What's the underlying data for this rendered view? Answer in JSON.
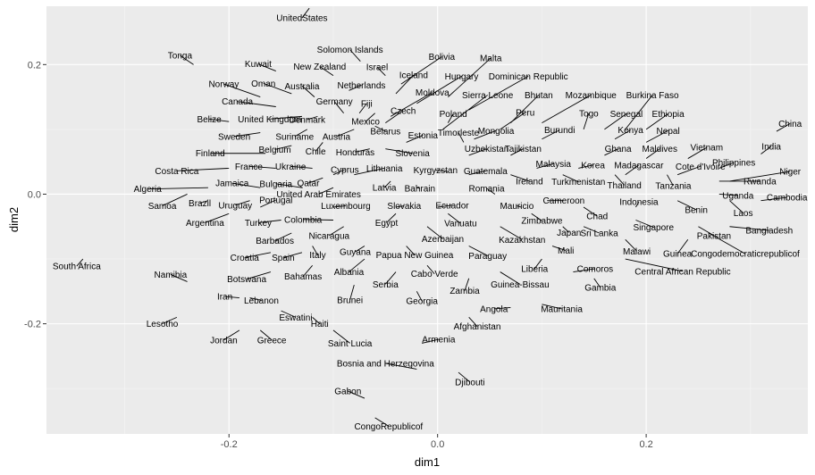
{
  "chart_data": {
    "type": "scatter",
    "xlabel": "dim1",
    "ylabel": "dim2",
    "xlim": [
      -0.375,
      0.355
    ],
    "ylim": [
      -0.37,
      0.29
    ],
    "x_ticks": [
      -0.2,
      0.0,
      0.2
    ],
    "x_tick_labels": [
      "-0.2",
      "0.0",
      "0.2"
    ],
    "y_ticks": [
      -0.2,
      0.0,
      0.2
    ],
    "y_tick_labels": [
      "-0.2",
      "0.0",
      "0.2"
    ],
    "grid": true,
    "labels": [
      {
        "text": "UnitedStates",
        "x": -0.13,
        "y": 0.272,
        "px": -0.123,
        "py": 0.287
      },
      {
        "text": "Tonga",
        "x": -0.247,
        "y": 0.214,
        "px": -0.234,
        "py": 0.2
      },
      {
        "text": "Solomon Islands",
        "x": -0.084,
        "y": 0.223,
        "px": -0.074,
        "py": 0.205
      },
      {
        "text": "Kuwait",
        "x": -0.172,
        "y": 0.201,
        "px": -0.155,
        "py": 0.19
      },
      {
        "text": "New Zealand",
        "x": -0.113,
        "y": 0.197,
        "px": -0.1,
        "py": 0.183
      },
      {
        "text": "Israel",
        "x": -0.058,
        "y": 0.196,
        "px": -0.05,
        "py": 0.183
      },
      {
        "text": "Bolivia",
        "x": 0.004,
        "y": 0.212,
        "px": -0.035,
        "py": 0.17
      },
      {
        "text": "Malta",
        "x": 0.051,
        "y": 0.21,
        "px": 0.01,
        "py": 0.15
      },
      {
        "text": "Norway",
        "x": -0.205,
        "y": 0.17,
        "px": -0.17,
        "py": 0.15
      },
      {
        "text": "Oman",
        "x": -0.167,
        "y": 0.171,
        "px": -0.14,
        "py": 0.155
      },
      {
        "text": "Australia",
        "x": -0.13,
        "y": 0.167,
        "px": -0.118,
        "py": 0.15
      },
      {
        "text": "Iceland",
        "x": -0.023,
        "y": 0.184,
        "px": -0.04,
        "py": 0.155
      },
      {
        "text": "Netherlands",
        "x": -0.073,
        "y": 0.168,
        "px": -0.085,
        "py": 0.16
      },
      {
        "text": "Hungary",
        "x": 0.023,
        "y": 0.182,
        "px": -0.02,
        "py": 0.14
      },
      {
        "text": "Dominican Republic",
        "x": 0.087,
        "y": 0.182,
        "px": 0.03,
        "py": 0.13
      },
      {
        "text": "Canada",
        "x": -0.192,
        "y": 0.143,
        "px": -0.155,
        "py": 0.135
      },
      {
        "text": "Germany",
        "x": -0.099,
        "y": 0.143,
        "px": -0.09,
        "py": 0.125
      },
      {
        "text": "Fiji",
        "x": -0.068,
        "y": 0.14,
        "px": -0.075,
        "py": 0.125
      },
      {
        "text": "Moldova",
        "x": -0.005,
        "y": 0.157,
        "px": -0.045,
        "py": 0.12
      },
      {
        "text": "Sierra Leone",
        "x": 0.048,
        "y": 0.153,
        "px": 0.005,
        "py": 0.1
      },
      {
        "text": "Bhutan",
        "x": 0.097,
        "y": 0.153,
        "px": 0.07,
        "py": 0.11
      },
      {
        "text": "Mozambique",
        "x": 0.147,
        "y": 0.153,
        "px": 0.1,
        "py": 0.11
      },
      {
        "text": "Burkina Faso",
        "x": 0.206,
        "y": 0.153,
        "px": 0.18,
        "py": 0.1
      },
      {
        "text": "Czech",
        "x": -0.033,
        "y": 0.129,
        "px": -0.05,
        "py": 0.11
      },
      {
        "text": "Peru",
        "x": 0.084,
        "y": 0.126,
        "px": 0.06,
        "py": 0.1
      },
      {
        "text": "Ethiopia",
        "x": 0.221,
        "y": 0.124,
        "px": 0.2,
        "py": 0.1
      },
      {
        "text": "Senegal",
        "x": 0.181,
        "y": 0.124,
        "px": 0.16,
        "py": 0.1
      },
      {
        "text": "Togo",
        "x": 0.145,
        "y": 0.125,
        "px": 0.14,
        "py": 0.1
      },
      {
        "text": "Poland",
        "x": 0.015,
        "y": 0.124,
        "px": 0.01,
        "py": 0.11
      },
      {
        "text": "Belize",
        "x": -0.219,
        "y": 0.116,
        "px": -0.2,
        "py": 0.112
      },
      {
        "text": "United Kingdom",
        "x": -0.161,
        "y": 0.116,
        "px": -0.13,
        "py": 0.12
      },
      {
        "text": "Denmark",
        "x": -0.125,
        "y": 0.115,
        "px": -0.115,
        "py": 0.12
      },
      {
        "text": "Mexico",
        "x": -0.069,
        "y": 0.112,
        "px": -0.06,
        "py": 0.125
      },
      {
        "text": "Burundi",
        "x": 0.117,
        "y": 0.099,
        "px": 0.1,
        "py": 0.085
      },
      {
        "text": "Mongolia",
        "x": 0.056,
        "y": 0.098,
        "px": 0.035,
        "py": 0.085
      },
      {
        "text": "Timorleste",
        "x": 0.02,
        "y": 0.095,
        "px": 0.025,
        "py": 0.08
      },
      {
        "text": "Kenya",
        "x": 0.185,
        "y": 0.099,
        "px": 0.17,
        "py": 0.085
      },
      {
        "text": "Nepal",
        "x": 0.221,
        "y": 0.098,
        "px": 0.2,
        "py": 0.08
      },
      {
        "text": "Belarus",
        "x": -0.05,
        "y": 0.097,
        "px": -0.06,
        "py": 0.105
      },
      {
        "text": "Estonia",
        "x": -0.014,
        "y": 0.091,
        "px": -0.03,
        "py": 0.08
      },
      {
        "text": "Sweden",
        "x": -0.195,
        "y": 0.089,
        "px": -0.17,
        "py": 0.095
      },
      {
        "text": "Suriname",
        "x": -0.137,
        "y": 0.089,
        "px": -0.125,
        "py": 0.1
      },
      {
        "text": "Austria",
        "x": -0.097,
        "y": 0.089,
        "px": -0.08,
        "py": 0.1
      },
      {
        "text": "China",
        "x": 0.338,
        "y": 0.109,
        "px": 0.325,
        "py": 0.097
      },
      {
        "text": "Uzbekistan",
        "x": 0.047,
        "y": 0.07,
        "px": 0.03,
        "py": 0.06
      },
      {
        "text": "Tajikistan",
        "x": 0.082,
        "y": 0.07,
        "px": 0.07,
        "py": 0.06
      },
      {
        "text": "Ghana",
        "x": 0.173,
        "y": 0.07,
        "px": 0.16,
        "py": 0.06
      },
      {
        "text": "Maldives",
        "x": 0.213,
        "y": 0.07,
        "px": 0.2,
        "py": 0.055
      },
      {
        "text": "Vietnam",
        "x": 0.258,
        "y": 0.072,
        "px": 0.24,
        "py": 0.055
      },
      {
        "text": "India",
        "x": 0.32,
        "y": 0.074,
        "px": 0.31,
        "py": 0.062
      },
      {
        "text": "Finland",
        "x": -0.218,
        "y": 0.063,
        "px": -0.165,
        "py": 0.063
      },
      {
        "text": "Belgium",
        "x": -0.156,
        "y": 0.069,
        "px": -0.14,
        "py": 0.075
      },
      {
        "text": "Chile",
        "x": -0.117,
        "y": 0.066,
        "px": -0.11,
        "py": 0.08
      },
      {
        "text": "Honduras",
        "x": -0.079,
        "y": 0.065,
        "px": -0.065,
        "py": 0.07
      },
      {
        "text": "Slovenia",
        "x": -0.024,
        "y": 0.063,
        "px": -0.05,
        "py": 0.07
      },
      {
        "text": "Philippines",
        "x": 0.284,
        "y": 0.049,
        "px": 0.27,
        "py": 0.04
      },
      {
        "text": "Malaysia",
        "x": 0.111,
        "y": 0.047,
        "px": 0.095,
        "py": 0.04
      },
      {
        "text": "Korea",
        "x": 0.149,
        "y": 0.045,
        "px": 0.135,
        "py": 0.04
      },
      {
        "text": "Madagascar",
        "x": 0.193,
        "y": 0.045,
        "px": 0.18,
        "py": 0.03
      },
      {
        "text": "Cote d'Ivoire",
        "x": 0.252,
        "y": 0.043,
        "px": 0.23,
        "py": 0.03
      },
      {
        "text": "Niger",
        "x": 0.338,
        "y": 0.035,
        "px": 0.28,
        "py": 0.02
      },
      {
        "text": "Costa Rica",
        "x": -0.25,
        "y": 0.036,
        "px": -0.2,
        "py": 0.04
      },
      {
        "text": "France",
        "x": -0.181,
        "y": 0.043,
        "px": -0.155,
        "py": 0.04
      },
      {
        "text": "Ukraine",
        "x": -0.141,
        "y": 0.043,
        "px": -0.12,
        "py": 0.04
      },
      {
        "text": "Cyprus",
        "x": -0.089,
        "y": 0.038,
        "px": -0.1,
        "py": 0.03
      },
      {
        "text": "Lithuania",
        "x": -0.051,
        "y": 0.04,
        "px": -0.08,
        "py": 0.03
      },
      {
        "text": "Kyrgyzstan",
        "x": -0.002,
        "y": 0.037,
        "px": 0.01,
        "py": 0.035
      },
      {
        "text": "Guatemala",
        "x": 0.046,
        "y": 0.036,
        "px": 0.03,
        "py": 0.03
      },
      {
        "text": "Rwanda",
        "x": 0.309,
        "y": 0.02,
        "px": 0.27,
        "py": 0.02
      },
      {
        "text": "Ireland",
        "x": 0.088,
        "y": 0.02,
        "px": 0.07,
        "py": 0.03
      },
      {
        "text": "Turkmenistan",
        "x": 0.135,
        "y": 0.019,
        "px": 0.12,
        "py": 0.03
      },
      {
        "text": "Thailand",
        "x": 0.179,
        "y": 0.014,
        "px": 0.17,
        "py": 0.03
      },
      {
        "text": "Tanzania",
        "x": 0.226,
        "y": 0.013,
        "px": 0.22,
        "py": 0.03
      },
      {
        "text": "Algeria",
        "x": -0.278,
        "y": 0.008,
        "px": -0.22,
        "py": 0.01
      },
      {
        "text": "Jamaica",
        "x": -0.197,
        "y": 0.017,
        "px": -0.17,
        "py": 0.01
      },
      {
        "text": "Bulgaria",
        "x": -0.155,
        "y": 0.016,
        "px": -0.13,
        "py": 0.01
      },
      {
        "text": "Qatar",
        "x": -0.124,
        "y": 0.017,
        "px": -0.11,
        "py": 0.025
      },
      {
        "text": "Latvia",
        "x": -0.051,
        "y": 0.01,
        "px": -0.045,
        "py": 0.02
      },
      {
        "text": "Bahrain",
        "x": -0.017,
        "y": 0.009,
        "px": -0.02,
        "py": 0.01
      },
      {
        "text": "Romania",
        "x": 0.047,
        "y": 0.009,
        "px": 0.055,
        "py": 0.0
      },
      {
        "text": "Uganda",
        "x": 0.288,
        "y": -0.002,
        "px": 0.27,
        "py": 0.0
      },
      {
        "text": "Cambodia",
        "x": 0.335,
        "y": -0.005,
        "px": 0.31,
        "py": -0.01
      },
      {
        "text": "United Arab Emirates",
        "x": -0.114,
        "y": 0.0,
        "px": -0.1,
        "py": 0.01
      },
      {
        "text": "Cameroon",
        "x": 0.121,
        "y": -0.01,
        "px": 0.105,
        "py": -0.01
      },
      {
        "text": "Samoa",
        "x": -0.264,
        "y": -0.018,
        "px": -0.24,
        "py": 0.0
      },
      {
        "text": "Brazil",
        "x": -0.228,
        "y": -0.014,
        "px": -0.22,
        "py": -0.01
      },
      {
        "text": "Uruguay",
        "x": -0.194,
        "y": -0.017,
        "px": -0.18,
        "py": -0.01
      },
      {
        "text": "Portugal",
        "x": -0.155,
        "y": -0.009,
        "px": -0.17,
        "py": -0.02
      },
      {
        "text": "Luxembourg",
        "x": -0.088,
        "y": -0.018,
        "px": -0.1,
        "py": -0.02
      },
      {
        "text": "Slovakia",
        "x": -0.032,
        "y": -0.018,
        "px": -0.04,
        "py": -0.02
      },
      {
        "text": "Ecuador",
        "x": 0.014,
        "y": -0.017,
        "px": 0.0,
        "py": -0.02
      },
      {
        "text": "Mauricio",
        "x": 0.076,
        "y": -0.018,
        "px": 0.08,
        "py": -0.02
      },
      {
        "text": "Indonesia",
        "x": 0.193,
        "y": -0.012,
        "px": 0.19,
        "py": -0.02
      },
      {
        "text": "Benin",
        "x": 0.248,
        "y": -0.024,
        "px": 0.23,
        "py": -0.01
      },
      {
        "text": "Laos",
        "x": 0.293,
        "y": -0.029,
        "px": 0.28,
        "py": -0.01
      },
      {
        "text": "Argentina",
        "x": -0.223,
        "y": -0.044,
        "px": -0.2,
        "py": -0.03
      },
      {
        "text": "Turkey",
        "x": -0.172,
        "y": -0.044,
        "px": -0.15,
        "py": -0.04
      },
      {
        "text": "Colombia",
        "x": -0.129,
        "y": -0.039,
        "px": -0.1,
        "py": -0.04
      },
      {
        "text": "Egypt",
        "x": -0.049,
        "y": -0.044,
        "px": -0.04,
        "py": -0.03
      },
      {
        "text": "Zimbabwe",
        "x": 0.1,
        "y": -0.041,
        "px": 0.09,
        "py": -0.03
      },
      {
        "text": "Chad",
        "x": 0.153,
        "y": -0.034,
        "px": 0.14,
        "py": -0.02
      },
      {
        "text": "Singapore",
        "x": 0.207,
        "y": -0.051,
        "px": 0.19,
        "py": -0.04
      },
      {
        "text": "Nicaragua",
        "x": -0.104,
        "y": -0.064,
        "px": -0.09,
        "py": -0.05
      },
      {
        "text": "Barbados",
        "x": -0.156,
        "y": -0.072,
        "px": -0.14,
        "py": -0.06
      },
      {
        "text": "Azerbaijan",
        "x": 0.005,
        "y": -0.069,
        "px": -0.01,
        "py": -0.05
      },
      {
        "text": "Kazakhstan",
        "x": 0.081,
        "y": -0.07,
        "px": 0.06,
        "py": -0.05
      },
      {
        "text": "Japan",
        "x": 0.126,
        "y": -0.059,
        "px": 0.12,
        "py": -0.05
      },
      {
        "text": "Sri Lanka",
        "x": 0.155,
        "y": -0.06,
        "px": 0.14,
        "py": -0.05
      },
      {
        "text": "Pakistan",
        "x": 0.265,
        "y": -0.064,
        "px": 0.25,
        "py": -0.05
      },
      {
        "text": "Bangladesh",
        "x": 0.318,
        "y": -0.056,
        "px": 0.28,
        "py": -0.05
      },
      {
        "text": "Vanuatu",
        "x": 0.022,
        "y": -0.045,
        "px": 0.01,
        "py": -0.03
      },
      {
        "text": "Guyana",
        "x": -0.079,
        "y": -0.089,
        "px": -0.07,
        "py": -0.08
      },
      {
        "text": "Italy",
        "x": -0.115,
        "y": -0.094,
        "px": -0.12,
        "py": -0.08
      },
      {
        "text": "Papua New Guinea",
        "x": -0.022,
        "y": -0.094,
        "px": -0.03,
        "py": -0.08
      },
      {
        "text": "Paraguay",
        "x": 0.048,
        "y": -0.095,
        "px": 0.03,
        "py": -0.08
      },
      {
        "text": "Liberia",
        "x": 0.093,
        "y": -0.115,
        "px": 0.1,
        "py": -0.1
      },
      {
        "text": "Mali",
        "x": 0.123,
        "y": -0.087,
        "px": 0.11,
        "py": -0.08
      },
      {
        "text": "Malawi",
        "x": 0.191,
        "y": -0.088,
        "px": 0.18,
        "py": -0.07
      },
      {
        "text": "Guinea",
        "x": 0.23,
        "y": -0.092,
        "px": 0.24,
        "py": -0.07
      },
      {
        "text": "Congodemocraticrepublicof",
        "x": 0.295,
        "y": -0.092,
        "px": 0.26,
        "py": -0.06
      },
      {
        "text": "Croatia",
        "x": -0.185,
        "y": -0.098,
        "px": -0.16,
        "py": -0.09
      },
      {
        "text": "Spain",
        "x": -0.148,
        "y": -0.098,
        "px": -0.13,
        "py": -0.09
      },
      {
        "text": "South Africa",
        "x": -0.346,
        "y": -0.111,
        "px": -0.34,
        "py": -0.1
      },
      {
        "text": "Albania",
        "x": -0.085,
        "y": -0.12,
        "px": -0.07,
        "py": -0.1
      },
      {
        "text": "Cabo Verde",
        "x": -0.003,
        "y": -0.123,
        "px": -0.01,
        "py": -0.11
      },
      {
        "text": "Comoros",
        "x": 0.151,
        "y": -0.115,
        "px": 0.13,
        "py": -0.12
      },
      {
        "text": "Central African Republic",
        "x": 0.235,
        "y": -0.119,
        "px": 0.18,
        "py": -0.1
      },
      {
        "text": "Namibia",
        "x": -0.256,
        "y": -0.124,
        "px": -0.24,
        "py": -0.135
      },
      {
        "text": "Botswana",
        "x": -0.183,
        "y": -0.131,
        "px": -0.16,
        "py": -0.12
      },
      {
        "text": "Bahamas",
        "x": -0.129,
        "y": -0.127,
        "px": -0.12,
        "py": -0.11
      },
      {
        "text": "Serbia",
        "x": -0.05,
        "y": -0.139,
        "px": -0.04,
        "py": -0.12
      },
      {
        "text": "Guinea-Bissau",
        "x": 0.079,
        "y": -0.139,
        "px": 0.06,
        "py": -0.12
      },
      {
        "text": "Gambia",
        "x": 0.156,
        "y": -0.144,
        "px": 0.15,
        "py": -0.13
      },
      {
        "text": "Zambia",
        "x": 0.026,
        "y": -0.149,
        "px": 0.03,
        "py": -0.13
      },
      {
        "text": "Iran",
        "x": -0.204,
        "y": -0.158,
        "px": -0.19,
        "py": -0.16
      },
      {
        "text": "Lebanon",
        "x": -0.169,
        "y": -0.164,
        "px": -0.18,
        "py": -0.16
      },
      {
        "text": "Brunei",
        "x": -0.084,
        "y": -0.163,
        "px": -0.08,
        "py": -0.14
      },
      {
        "text": "Georgia",
        "x": -0.015,
        "y": -0.165,
        "px": -0.02,
        "py": -0.15
      },
      {
        "text": "Angola",
        "x": 0.054,
        "y": -0.177,
        "px": 0.07,
        "py": -0.175
      },
      {
        "text": "Mauritania",
        "x": 0.119,
        "y": -0.177,
        "px": 0.1,
        "py": -0.17
      },
      {
        "text": "Eswatini",
        "x": -0.136,
        "y": -0.19,
        "px": -0.15,
        "py": -0.18
      },
      {
        "text": "Haiti",
        "x": -0.113,
        "y": -0.2,
        "px": -0.12,
        "py": -0.19
      },
      {
        "text": "Lesotho",
        "x": -0.264,
        "y": -0.2,
        "px": -0.25,
        "py": -0.19
      },
      {
        "text": "Afghanistan",
        "x": 0.038,
        "y": -0.204,
        "px": 0.03,
        "py": -0.19
      },
      {
        "text": "Jordan",
        "x": -0.205,
        "y": -0.225,
        "px": -0.19,
        "py": -0.21
      },
      {
        "text": "Greece",
        "x": -0.159,
        "y": -0.225,
        "px": -0.17,
        "py": -0.21
      },
      {
        "text": "Saint Lucia",
        "x": -0.084,
        "y": -0.23,
        "px": -0.1,
        "py": -0.21
      },
      {
        "text": "Armenia",
        "x": 0.001,
        "y": -0.224,
        "px": -0.015,
        "py": -0.23
      },
      {
        "text": "Bosnia and Herzegovina",
        "x": -0.05,
        "y": -0.261,
        "px": -0.02,
        "py": -0.27
      },
      {
        "text": "Djibouti",
        "x": 0.031,
        "y": -0.29,
        "px": 0.02,
        "py": -0.275
      },
      {
        "text": "Gabon",
        "x": -0.086,
        "y": -0.304,
        "px": -0.07,
        "py": -0.315
      },
      {
        "text": "CongoRepublicof",
        "x": -0.047,
        "y": -0.358,
        "px": -0.06,
        "py": -0.345
      }
    ]
  }
}
